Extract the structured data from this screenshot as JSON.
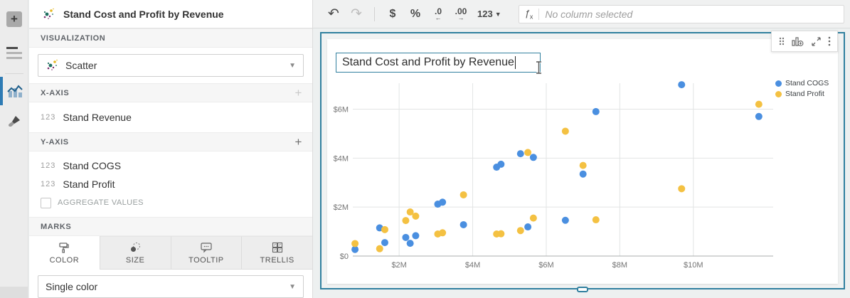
{
  "rail": {
    "add_glyph": "+"
  },
  "panel": {
    "title": "Stand Cost and Profit by Revenue",
    "visualization_label": "VISUALIZATION",
    "viz_type": "Scatter",
    "x_axis_label": "X-AXIS",
    "x_fields": [
      {
        "type": "123",
        "name": "Stand Revenue"
      }
    ],
    "y_axis_label": "Y-AXIS",
    "y_fields": [
      {
        "type": "123",
        "name": "Stand COGS"
      },
      {
        "type": "123",
        "name": "Stand Profit"
      }
    ],
    "aggregate_label": "AGGREGATE VALUES",
    "marks_label": "MARKS",
    "tabs": [
      "COLOR",
      "SIZE",
      "TOOLTIP",
      "TRELLIS"
    ],
    "color_mode": "Single color"
  },
  "toolbar": {
    "undo_glyph": "↶",
    "redo_glyph": "↷",
    "dollar": "$",
    "percent": "%",
    "decrease_decimal": ".0",
    "decrease_arrow": "←",
    "increase_decimal": ".00",
    "increase_arrow": "→",
    "number_format": "123",
    "fx_label": "ƒ",
    "formula_placeholder": "No column selected"
  },
  "chart": {
    "title_input_value": "Stand Cost and Profit by Revenue"
  },
  "chart_data": {
    "type": "scatter",
    "title": "Stand Cost and Profit by Revenue",
    "units": "millions USD",
    "x_name": "Stand Revenue",
    "x": [
      0.8,
      1.47,
      1.61,
      2.18,
      2.3,
      2.45,
      3.05,
      3.18,
      3.75,
      4.65,
      4.77,
      5.3,
      5.5,
      5.65,
      6.52,
      7.0,
      7.35,
      9.68,
      11.78
    ],
    "series": [
      {
        "name": "Stand COGS",
        "color": "#4A8FE0",
        "values": [
          0.27,
          1.15,
          0.55,
          0.76,
          0.52,
          0.83,
          2.12,
          2.2,
          1.28,
          3.63,
          3.75,
          4.18,
          1.19,
          4.03,
          1.46,
          3.35,
          5.9,
          7.0,
          5.7
        ]
      },
      {
        "name": "Stand Profit",
        "color": "#F4C142",
        "values": [
          0.51,
          0.3,
          1.08,
          1.45,
          1.8,
          1.63,
          0.9,
          0.95,
          2.5,
          0.9,
          0.91,
          1.04,
          4.23,
          1.55,
          5.1,
          3.7,
          1.48,
          2.75,
          6.2
        ]
      }
    ],
    "x_ticks": {
      "values": [
        2,
        4,
        6,
        8,
        10
      ],
      "labels": [
        "$2M",
        "$4M",
        "$6M",
        "$8M",
        "$10M"
      ]
    },
    "y_ticks": {
      "values": [
        0,
        2,
        4,
        6
      ],
      "labels": [
        "$0",
        "$2M",
        "$4M",
        "$6M"
      ]
    },
    "xlim": [
      0.74,
      12.17
    ],
    "ylim": [
      0,
      7.06
    ],
    "grid": true,
    "legend_position": "right"
  }
}
